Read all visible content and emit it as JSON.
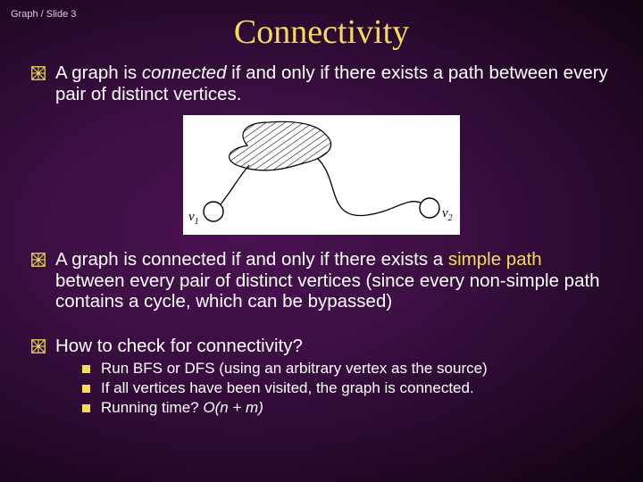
{
  "breadcrumb": "Graph / Slide 3",
  "title": "Connectivity",
  "bullets": [
    {
      "pre": "A graph is ",
      "em": "connected",
      "post": " if and only if there exists a path between every pair of distinct vertices."
    },
    {
      "pre": "A graph is connected if and only if there exists a ",
      "accent": "simple path",
      "post": " between every pair of distinct vertices (since every non-simple path contains a cycle, which can be bypassed)"
    },
    {
      "pre": "How to check for connectivity?",
      "em": "",
      "post": ""
    }
  ],
  "sub_bullets": [
    "Run BFS or DFS (using an arbitrary vertex as the source)",
    "If all vertices have been visited, the graph is connected.",
    "Running time?  O(n + m)"
  ],
  "figure": {
    "v1_label": "v",
    "v1_sub": "1",
    "v2_label": "v",
    "v2_sub": "2",
    "bg": "#ffffff",
    "stroke": "#000000"
  },
  "colors": {
    "title": "#f5db5a",
    "accent": "#f5db5a",
    "text": "#ffffff",
    "square": "#f5db5a"
  }
}
